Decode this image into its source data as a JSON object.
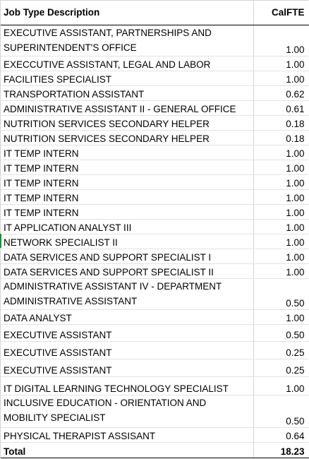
{
  "header": {
    "description": "Job Type Description",
    "fte": "CalFTE"
  },
  "rows": [
    {
      "lines": [
        "EXECUTIVE ASSISTANT, PARTNERSHIPS AND",
        "SUPERINTENDENT'S OFFICE"
      ],
      "fte": "1.00"
    },
    {
      "lines": [
        "EXECCUTIVE ASSISTANT, LEGAL AND LABOR"
      ],
      "fte": "1.00"
    },
    {
      "lines": [
        "FACILITIES SPECIALIST"
      ],
      "fte": "1.00"
    },
    {
      "lines": [
        "TRANSPORTATION ASSISTANT"
      ],
      "fte": "0.62"
    },
    {
      "lines": [
        "ADMINISTRATIVE ASSISTANT II - GENERAL OFFICE"
      ],
      "fte": "0.61"
    },
    {
      "lines": [
        "NUTRITION SERVICES SECONDARY HELPER"
      ],
      "fte": "0.18"
    },
    {
      "lines": [
        "NUTRITION SERVICES SECONDARY HELPER"
      ],
      "fte": "0.18"
    },
    {
      "lines": [
        "IT TEMP INTERN"
      ],
      "fte": "1.00"
    },
    {
      "lines": [
        "IT TEMP INTERN"
      ],
      "fte": "1.00"
    },
    {
      "lines": [
        "IT TEMP INTERN"
      ],
      "fte": "1.00"
    },
    {
      "lines": [
        "IT TEMP INTERN"
      ],
      "fte": "1.00"
    },
    {
      "lines": [
        "IT TEMP INTERN"
      ],
      "fte": "1.00"
    },
    {
      "lines": [
        "IT APPLICATION ANALYST III"
      ],
      "fte": "1.00"
    },
    {
      "lines": [
        "NETWORK SPECIALIST II"
      ],
      "fte": "1.00"
    },
    {
      "lines": [
        "DATA SERVICES AND SUPPORT SPECIALIST I"
      ],
      "fte": "1.00"
    },
    {
      "lines": [
        "DATA SERVICES AND SUPPORT SPECIALIST II"
      ],
      "fte": "1.00"
    },
    {
      "lines": [
        "ADMINISTRATIVE ASSISTANT IV - DEPARTMENT",
        "ADMINISTRATIVE ASSISTANT"
      ],
      "fte": "0.50"
    },
    {
      "lines": [
        "DATA ANALYST"
      ],
      "fte": "1.00"
    },
    {
      "lines": [
        "EXECUTIVE ASSISTANT"
      ],
      "fte": "0.50"
    },
    {
      "lines": [
        "EXECUTIVE ASSISTANT"
      ],
      "fte": "0.25"
    },
    {
      "lines": [
        "EXECUTIVE ASSISTANT"
      ],
      "fte": "0.25"
    },
    {
      "lines": [
        "IT DIGITAL LEARNING TECHNOLOGY SPECIALIST"
      ],
      "fte": "1.00"
    },
    {
      "lines": [
        "INCLUSIVE EDUCATION - ORIENTATION  AND",
        "MOBILITY SPECIALIST"
      ],
      "fte": "0.50"
    },
    {
      "lines": [
        "PHYSICAL THERAPIST ASSISANT"
      ],
      "fte": "0.64"
    }
  ],
  "total": {
    "label": "Total",
    "fte": "18.23"
  },
  "colors": {
    "grid": "#d4d4d4",
    "flag": "#1e8c3a"
  }
}
